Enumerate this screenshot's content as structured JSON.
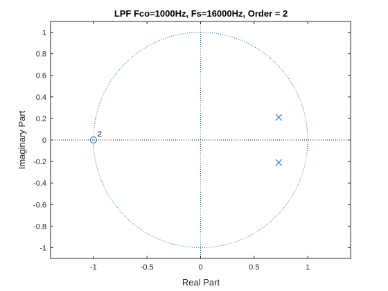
{
  "chart_data": {
    "type": "scatter",
    "title": "LPF Fco=1000Hz, Fs=16000Hz, Order = 2",
    "xlabel": "Real Part",
    "ylabel": "Imaginary Part",
    "xlim": [
      -1.4,
      1.4
    ],
    "ylim": [
      -1.1,
      1.1
    ],
    "x_ticks": [
      -1,
      -0.5,
      0,
      0.5,
      1
    ],
    "x_tick_labels": [
      "-1",
      "-0.5",
      "0",
      "0.5",
      "1"
    ],
    "y_ticks": [
      -1,
      -0.8,
      -0.6,
      -0.4,
      -0.2,
      0,
      0.2,
      0.4,
      0.6,
      0.8,
      1
    ],
    "y_tick_labels": [
      "-1",
      "-0.8",
      "-0.6",
      "-0.4",
      "-0.2",
      "0",
      "0.2",
      "0.4",
      "0.6",
      "0.8",
      "1"
    ],
    "grid": false,
    "unit_circle": true,
    "zeros": [
      {
        "x": -1,
        "y": 0
      }
    ],
    "zero_multiplicity_label": "2",
    "poles": [
      {
        "x": 0.73,
        "y": 0.21
      },
      {
        "x": 0.73,
        "y": -0.21
      }
    ],
    "colors": {
      "marker": "#0072BD",
      "circle": "#0072BD",
      "axes": "#262626",
      "guide": "#000000"
    }
  }
}
